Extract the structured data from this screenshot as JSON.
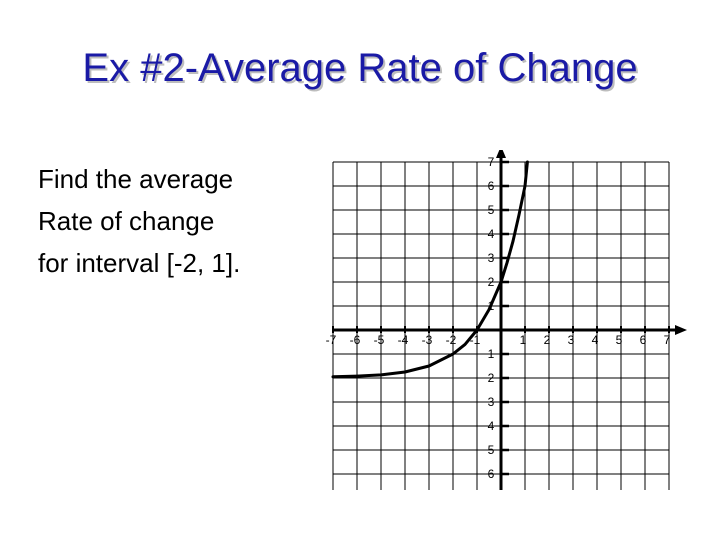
{
  "title": "Ex #2-Average Rate of Change",
  "prompt_lines": [
    "Find the average",
    "Rate of change",
    "for interval [-2, 1]."
  ],
  "colors": {
    "title": "#1a1aa6",
    "grid": "#000000",
    "curve": "#000000"
  },
  "chart_data": {
    "type": "line",
    "title": "",
    "xlabel": "",
    "ylabel": "",
    "xlim": [
      -7,
      7
    ],
    "ylim": [
      -7,
      7
    ],
    "grid": true,
    "x_tick_labels": [
      "-7",
      "-6",
      "-5",
      "-4",
      "-3",
      "-2",
      "-1",
      "1",
      "2",
      "3",
      "4",
      "5",
      "6",
      "7"
    ],
    "y_tick_labels": [
      "7",
      "6",
      "5",
      "4",
      "3",
      "2",
      "1",
      "1",
      "2",
      "3",
      "4",
      "5",
      "6",
      "7"
    ],
    "series": [
      {
        "name": "",
        "x": [
          -7,
          -6,
          -5,
          -4,
          -3,
          -2,
          -1.5,
          -1,
          -0.5,
          0,
          0.25,
          0.5,
          0.75,
          1,
          1.1
        ],
        "y": [
          -1.95,
          -1.92,
          -1.87,
          -1.75,
          -1.5,
          -1.0,
          -0.6,
          0.0,
          0.85,
          2.0,
          2.8,
          3.7,
          4.8,
          6.0,
          7.0
        ]
      }
    ]
  }
}
